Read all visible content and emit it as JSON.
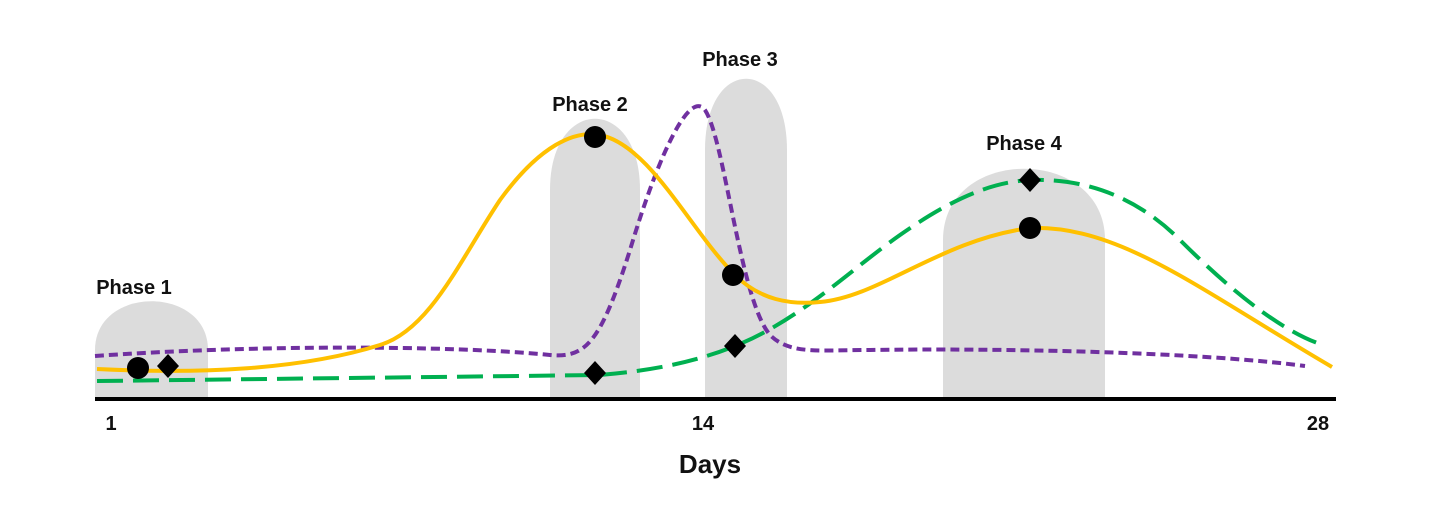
{
  "phases": [
    {
      "label": "Phase 1"
    },
    {
      "label": "Phase 2"
    },
    {
      "label": "Phase 3"
    },
    {
      "label": "Phase 4"
    }
  ],
  "axis": {
    "ticks": [
      "1",
      "14",
      "28"
    ],
    "title": "Days"
  }
}
